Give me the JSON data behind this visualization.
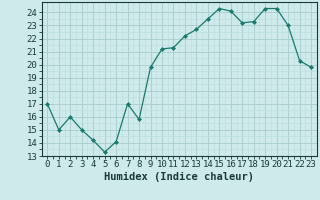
{
  "x": [
    0,
    1,
    2,
    3,
    4,
    5,
    6,
    7,
    8,
    9,
    10,
    11,
    12,
    13,
    14,
    15,
    16,
    17,
    18,
    19,
    20,
    21,
    22,
    23
  ],
  "y": [
    17,
    15,
    16,
    15,
    14.2,
    13.3,
    14.1,
    17.0,
    15.8,
    19.8,
    21.2,
    21.3,
    22.2,
    22.7,
    23.5,
    24.3,
    24.1,
    23.2,
    23.3,
    24.3,
    24.3,
    23.0,
    20.3,
    19.8
  ],
  "line_color": "#1a7a6e",
  "marker_color": "#1a7a6e",
  "bg_color": "#ceeaea",
  "grid_major_color": "#aacccc",
  "grid_minor_color": "#bcdede",
  "xlabel": "Humidex (Indice chaleur)",
  "ylim": [
    13,
    24.8
  ],
  "yticks": [
    13,
    14,
    15,
    16,
    17,
    18,
    19,
    20,
    21,
    22,
    23,
    24
  ],
  "xticks": [
    0,
    1,
    2,
    3,
    4,
    5,
    6,
    7,
    8,
    9,
    10,
    11,
    12,
    13,
    14,
    15,
    16,
    17,
    18,
    19,
    20,
    21,
    22,
    23
  ],
  "tick_fontsize": 6.5,
  "xlabel_fontsize": 7.5
}
